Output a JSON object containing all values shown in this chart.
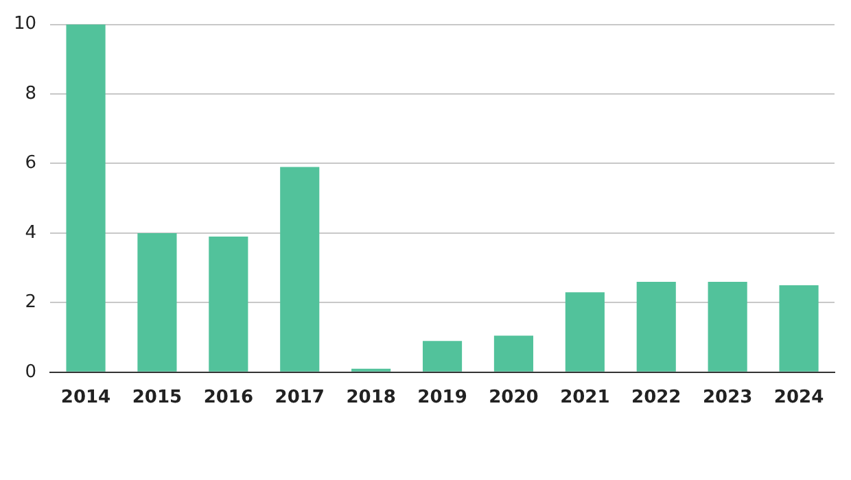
{
  "chart_data": {
    "type": "bar",
    "categories": [
      "2014",
      "2015",
      "2016",
      "2017",
      "2018",
      "2019",
      "2020",
      "2021",
      "2022",
      "2023",
      "2024"
    ],
    "values": [
      10,
      4,
      3.9,
      5.9,
      0.1,
      0.9,
      1.05,
      2.3,
      2.6,
      2.6,
      2.5
    ],
    "color": "#52c29b",
    "ylim": [
      0,
      10
    ],
    "yticks": [
      0,
      2,
      4,
      6,
      8,
      10
    ],
    "grid": "y",
    "legend": false
  }
}
